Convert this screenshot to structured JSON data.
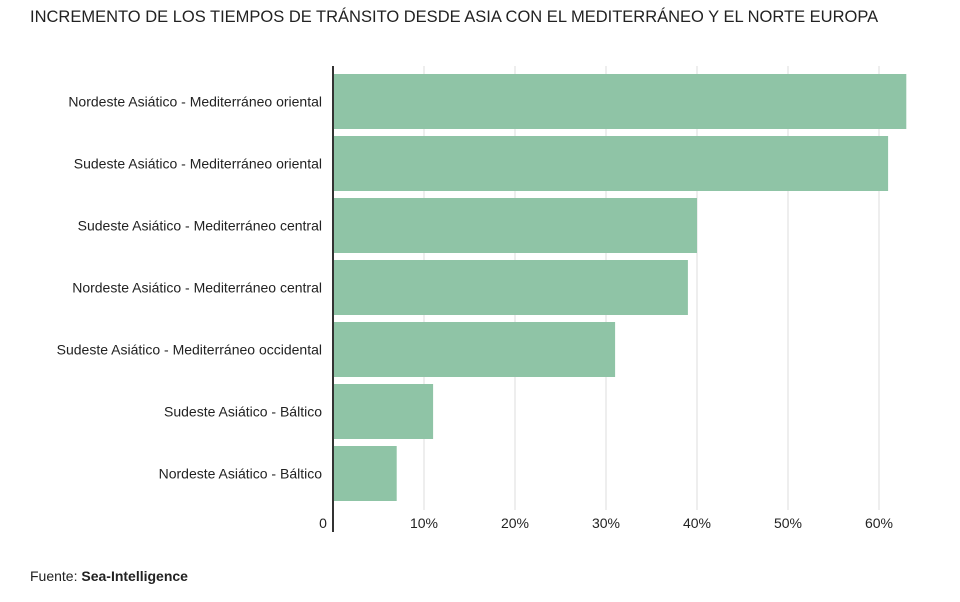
{
  "title": "INCREMENTO DE LOS TIEMPOS DE TRÁNSITO DESDE ASIA CON EL MEDITERRÁNEO Y EL NORTE EUROPA",
  "source": {
    "prefix": "Fuente:",
    "name": "Sea-Intelligence"
  },
  "chart_data": {
    "type": "bar",
    "orientation": "horizontal",
    "title": "INCREMENTO DE LOS TIEMPOS DE TRÁNSITO DESDE ASIA CON EL MEDITERRÁNEO Y EL NORTE EUROPA",
    "xlabel": "",
    "ylabel": "",
    "categories": [
      "Nordeste Asiático - Mediterráneo oriental",
      "Sudeste Asiático - Mediterráneo oriental",
      "Sudeste Asiático - Mediterráneo central",
      "Nordeste Asiático - Mediterráneo central",
      "Sudeste Asiático - Mediterráneo occidental",
      "Sudeste Asiático - Báltico",
      "Nordeste Asiático - Báltico"
    ],
    "values": [
      63,
      61,
      40,
      39,
      31,
      11,
      7
    ],
    "xlim": [
      0,
      65
    ],
    "x_ticks": [
      0,
      10,
      20,
      30,
      40,
      50,
      60
    ],
    "x_tick_labels": [
      "0",
      "10%",
      "20%",
      "30%",
      "40%",
      "50%",
      "60%"
    ],
    "grid": true,
    "bar_color": "#8fc4a6",
    "grid_color": "#dddddd",
    "axis_color": "#333333"
  }
}
